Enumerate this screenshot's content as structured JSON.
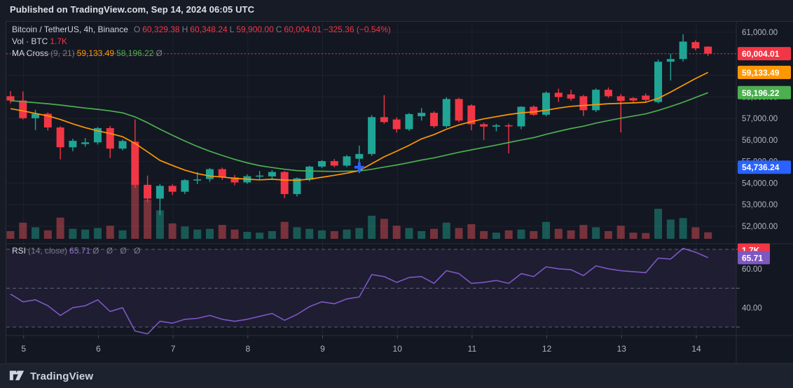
{
  "header": {
    "published": "Published on TradingView.com, Sep 14, 2024 06:05 UTC"
  },
  "legend": {
    "symbol": "Bitcoin / TetherUS, 4h, Binance",
    "o_label": "O",
    "o": "60,329.38",
    "h_label": "H",
    "h": "60,348.24",
    "l_label": "L",
    "l": "59,900.00",
    "c_label": "C",
    "c": "60,004.01",
    "change": "−325.36 (−0.54%)",
    "vol_label": "Vol · BTC",
    "vol_value": "1.7K",
    "ma_label": "MA Cross",
    "ma_params": "(9, 21)",
    "ma_fast_value": "59,133.49",
    "ma_slow_value": "58,196.22",
    "ma_extra": "Ø",
    "rsi_label": "RSI",
    "rsi_params": "(14, close)",
    "rsi_value": "65.71",
    "rsi_extra": "Ø Ø Ø Ø"
  },
  "footer": {
    "brand": "TradingView"
  },
  "axes": {
    "price_labels": [
      {
        "text": "61,000.00",
        "price": 61000
      },
      {
        "text": "60,000.00",
        "price": 60000
      },
      {
        "text": "59,000.00",
        "price": 59000
      },
      {
        "text": "58,000.00",
        "price": 58000
      },
      {
        "text": "57,000.00",
        "price": 57000
      },
      {
        "text": "56,000.00",
        "price": 56000
      },
      {
        "text": "55,000.00",
        "price": 55000
      },
      {
        "text": "54,000.00",
        "price": 54000
      },
      {
        "text": "53,000.00",
        "price": 53000
      },
      {
        "text": "52,000.00",
        "price": 52000
      }
    ],
    "price_badges": [
      {
        "text": "60,004.01",
        "price": 60004.01,
        "color": "#f23645"
      },
      {
        "text": "59,133.49",
        "price": 59133.49,
        "color": "#ff9800"
      },
      {
        "text": "58,196.22",
        "price": 58196.22,
        "color": "#4caf50"
      },
      {
        "text": "54,736.24",
        "price": 54736.24,
        "color": "#2962ff"
      }
    ],
    "volume_badge": {
      "text": "1.7K",
      "color": "#f23645"
    },
    "rsi_labels": [
      {
        "text": "60.00",
        "value": 60
      },
      {
        "text": "40.00",
        "value": 40
      }
    ],
    "rsi_badge": {
      "text": "65.71",
      "value": 65.71,
      "color": "#7e57c2"
    },
    "time_labels": [
      {
        "text": "5",
        "day": 0
      },
      {
        "text": "6",
        "day": 1
      },
      {
        "text": "7",
        "day": 2
      },
      {
        "text": "8",
        "day": 3
      },
      {
        "text": "9",
        "day": 4
      },
      {
        "text": "10",
        "day": 5
      },
      {
        "text": "11",
        "day": 6
      },
      {
        "text": "12",
        "day": 7
      },
      {
        "text": "13",
        "day": 8
      },
      {
        "text": "14",
        "day": 9
      }
    ]
  },
  "chart_data": {
    "type": "candlestick",
    "title": "Bitcoin / TetherUS, 4h, Binance",
    "interval": "4h",
    "start_time": "Sep 4 2024 20:00 UTC",
    "ylim": [
      51190,
      61490
    ],
    "rsi_lim_guides": [
      70,
      50,
      30
    ],
    "last_close": 60004.01,
    "crosshair": {
      "candle_index": 28,
      "price": 54736.24
    },
    "volume_unit": "K BTC",
    "candles": [
      [
        58030,
        58270,
        57700,
        57830
      ],
      [
        57830,
        58250,
        56950,
        57010
      ],
      [
        57010,
        57400,
        56460,
        57215
      ],
      [
        57215,
        57280,
        56440,
        56580
      ],
      [
        56580,
        56640,
        55100,
        55660
      ],
      [
        55660,
        56060,
        55480,
        55960
      ],
      [
        55810,
        56090,
        55690,
        55890
      ],
      [
        55890,
        56600,
        55790,
        56550
      ],
      [
        56550,
        56650,
        55160,
        55600
      ],
      [
        55600,
        56020,
        55520,
        55950
      ],
      [
        55920,
        56950,
        53780,
        53920
      ],
      [
        53920,
        54350,
        53110,
        53280
      ],
      [
        53280,
        53950,
        52510,
        53870
      ],
      [
        53870,
        53940,
        53450,
        53600
      ],
      [
        53600,
        54180,
        53490,
        54135
      ],
      [
        54135,
        54510,
        53950,
        54170
      ],
      [
        54190,
        54700,
        54060,
        54645
      ],
      [
        54645,
        54720,
        54150,
        54265
      ],
      [
        54265,
        54380,
        53900,
        54030
      ],
      [
        54030,
        54400,
        53960,
        54320
      ],
      [
        54320,
        54560,
        54180,
        54350
      ],
      [
        54310,
        54600,
        54200,
        54515
      ],
      [
        54515,
        54560,
        53300,
        53490
      ],
      [
        53490,
        54260,
        53380,
        54220
      ],
      [
        54160,
        54810,
        54080,
        54765
      ],
      [
        54765,
        55070,
        54690,
        55020
      ],
      [
        55020,
        55120,
        54740,
        54810
      ],
      [
        54810,
        55300,
        54740,
        55240
      ],
      [
        55130,
        55740,
        54460,
        55350
      ],
      [
        55350,
        57150,
        55260,
        57060
      ],
      [
        57060,
        58080,
        56750,
        56830
      ],
      [
        56950,
        57050,
        56350,
        56500
      ],
      [
        56500,
        57250,
        56420,
        57200
      ],
      [
        57100,
        57480,
        56900,
        57260
      ],
      [
        57260,
        57330,
        56560,
        56640
      ],
      [
        56640,
        57980,
        56560,
        57900
      ],
      [
        57900,
        57950,
        56820,
        56900
      ],
      [
        57600,
        57650,
        56450,
        56730
      ],
      [
        56730,
        56800,
        56000,
        56620
      ],
      [
        56620,
        56750,
        56400,
        56680
      ],
      [
        56680,
        56760,
        55380,
        56630
      ],
      [
        56630,
        57560,
        56500,
        57540
      ],
      [
        57540,
        57600,
        57120,
        57170
      ],
      [
        57170,
        58250,
        57100,
        58190
      ],
      [
        58190,
        58380,
        57760,
        57990
      ],
      [
        58115,
        58330,
        57820,
        57920
      ],
      [
        58030,
        58090,
        57110,
        57380
      ],
      [
        57380,
        58390,
        57300,
        58330
      ],
      [
        58330,
        58440,
        57950,
        58030
      ],
      [
        58030,
        58130,
        56350,
        57810
      ],
      [
        57940,
        57990,
        57700,
        57830
      ],
      [
        58060,
        58160,
        57760,
        57860
      ],
      [
        57760,
        59730,
        57700,
        59630
      ],
      [
        59630,
        60000,
        58760,
        59755
      ],
      [
        59755,
        60900,
        59640,
        60565
      ],
      [
        60540,
        60620,
        60150,
        60250
      ],
      [
        60329.38,
        60348.24,
        59900,
        60004.01
      ]
    ],
    "volumes_k": [
      2.0,
      4.2,
      3.0,
      2.2,
      5.5,
      2.6,
      2.4,
      2.8,
      3.4,
      2.2,
      14.8,
      10.2,
      7.4,
      4.0,
      3.2,
      2.4,
      2.6,
      3.6,
      2.4,
      1.8,
      1.6,
      2.0,
      4.4,
      3.0,
      2.6,
      2.2,
      2.0,
      2.4,
      2.8,
      6.0,
      5.2,
      3.4,
      2.8,
      2.0,
      2.6,
      4.2,
      2.8,
      3.8,
      2.0,
      1.6,
      2.2,
      2.4,
      2.0,
      4.4,
      2.6,
      2.2,
      3.6,
      3.0,
      2.0,
      3.4,
      1.6,
      1.5,
      7.8,
      5.0,
      5.4,
      3.0,
      1.7
    ],
    "rsi": [
      47,
      43,
      44,
      41,
      36,
      40,
      41,
      44,
      38,
      40,
      28,
      26.5,
      33,
      32,
      34,
      34.5,
      36,
      34,
      33,
      34,
      35.5,
      37,
      33.5,
      36.5,
      40.5,
      43,
      42,
      44.5,
      45.5,
      57,
      56,
      53,
      55.5,
      56,
      52.5,
      59,
      57.5,
      52.5,
      53,
      54,
      52.5,
      57.5,
      56,
      61,
      60,
      59.5,
      56.5,
      61.5,
      60,
      59,
      58.5,
      58,
      65.5,
      65,
      70.5,
      68.5,
      65.71
    ],
    "ma9": [
      57450,
      57350,
      57230,
      57120,
      56950,
      56750,
      56570,
      56420,
      56300,
      56150,
      55840,
      55450,
      55050,
      54820,
      54600,
      54440,
      54330,
      54280,
      54220,
      54180,
      54150,
      54180,
      54140,
      54130,
      54180,
      54270,
      54360,
      54460,
      54580,
      54900,
      55220,
      55480,
      55750,
      56050,
      56250,
      56500,
      56700,
      56850,
      56980,
      57080,
      57180,
      57260,
      57300,
      57380,
      57480,
      57560,
      57600,
      57640,
      57680,
      57700,
      57720,
      57750,
      57930,
      58220,
      58540,
      58850,
      59133
    ],
    "ma21": [
      57820,
      57780,
      57730,
      57680,
      57620,
      57550,
      57480,
      57420,
      57350,
      57260,
      57070,
      56800,
      56500,
      56220,
      55950,
      55700,
      55480,
      55280,
      55100,
      54940,
      54810,
      54720,
      54640,
      54580,
      54560,
      54550,
      54540,
      54550,
      54560,
      54640,
      54740,
      54840,
      54950,
      55070,
      55170,
      55300,
      55430,
      55540,
      55650,
      55760,
      55880,
      56000,
      56110,
      56260,
      56400,
      56530,
      56640,
      56780,
      56900,
      57010,
      57110,
      57210,
      57370,
      57550,
      57750,
      57970,
      58196
    ],
    "colors": {
      "up": "#1fa595",
      "down": "#f23645",
      "vol_up": "rgba(34,171,148,0.45)",
      "vol_down": "rgba(242,84,91,0.45)",
      "ma_fast": "#ff9800",
      "ma_slow": "#4caf50",
      "rsi_line": "#7e57c2",
      "rsi_band": "rgba(126,87,194,0.10)",
      "crosshair": "#2962ff",
      "axis_text": "#b2b5be",
      "grid": "#1e222d",
      "border": "#2a2e39",
      "close_line": "#f23645"
    }
  }
}
